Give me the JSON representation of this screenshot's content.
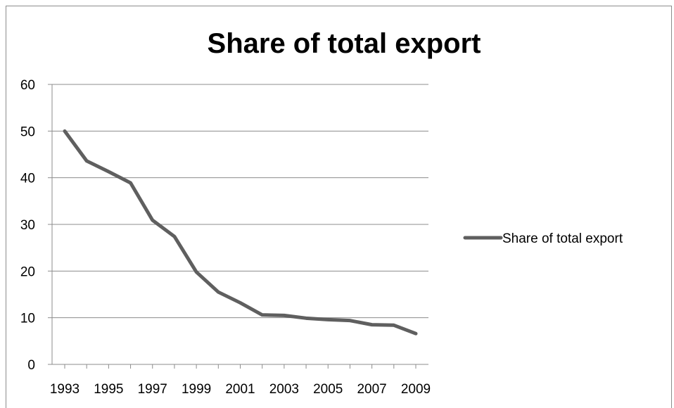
{
  "chart_data": {
    "type": "line",
    "title": "Share of total export",
    "xlabel": "",
    "ylabel": "",
    "x": [
      1993,
      1994,
      1995,
      1996,
      1997,
      1998,
      1999,
      2000,
      2001,
      2002,
      2003,
      2004,
      2005,
      2006,
      2007,
      2008,
      2009
    ],
    "x_tick_labels": [
      "1993",
      "1995",
      "1997",
      "1999",
      "2001",
      "2003",
      "2005",
      "2007",
      "2009"
    ],
    "y_tick_labels": [
      "0",
      "10",
      "20",
      "30",
      "40",
      "50",
      "60"
    ],
    "ylim": [
      0,
      60
    ],
    "grid": true,
    "legend_position": "right",
    "series": [
      {
        "name": "Share of total export",
        "color": "#5f5f5f",
        "values": [
          50.0,
          43.6,
          41.3,
          38.9,
          30.9,
          27.4,
          19.8,
          15.5,
          13.2,
          10.6,
          10.5,
          9.9,
          9.6,
          9.4,
          8.5,
          8.4,
          6.6
        ]
      }
    ]
  }
}
